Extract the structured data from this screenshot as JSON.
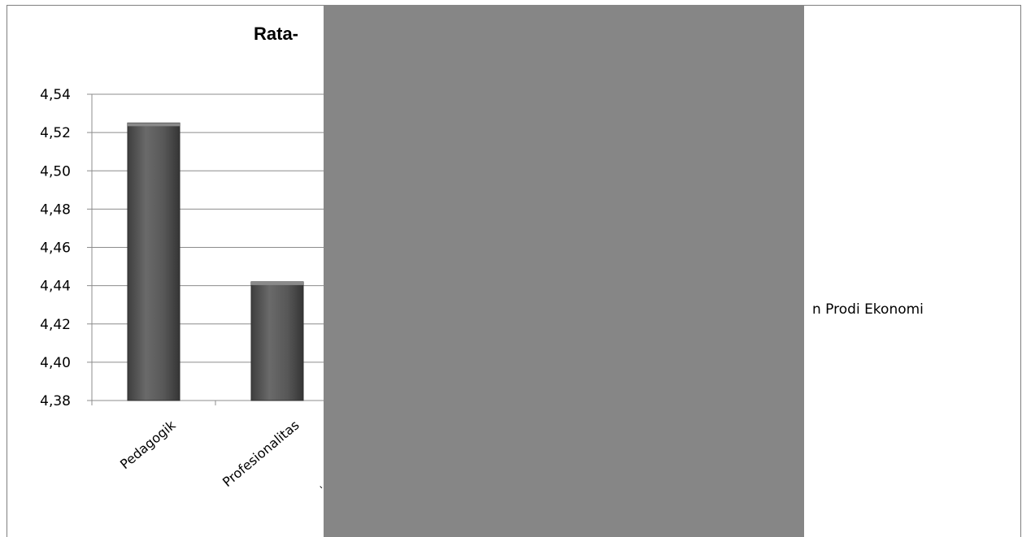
{
  "chart_data": {
    "type": "bar",
    "title": "Rata-",
    "categories": [
      "Pedagogik",
      "Profesionalitas"
    ],
    "values": [
      4.525,
      4.442
    ],
    "ylim": [
      4.38,
      4.54
    ],
    "yticks": [
      "4,38",
      "4,40",
      "4,42",
      "4,44",
      "4,46",
      "4,48",
      "4,50",
      "4,52",
      "4,54"
    ],
    "ytick_values": [
      4.38,
      4.4,
      4.42,
      4.44,
      4.46,
      4.48,
      4.5,
      4.52,
      4.54
    ],
    "legend_fragment": "n Prodi Ekonomi",
    "grid": true,
    "bar_color": "#555555"
  },
  "stray_text": "`"
}
